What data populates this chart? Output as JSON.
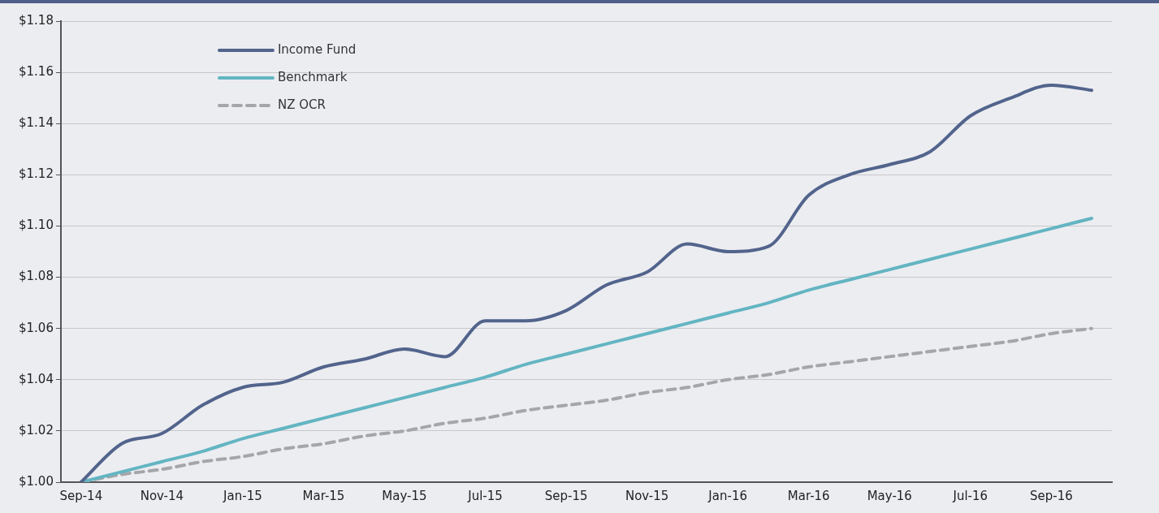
{
  "chart_data": {
    "type": "line",
    "categories": [
      "Sep-14",
      null,
      "Nov-14",
      null,
      "Jan-15",
      null,
      "Mar-15",
      null,
      "May-15",
      null,
      "Jul-15",
      null,
      "Sep-15",
      null,
      "Nov-15",
      null,
      "Jan-16",
      null,
      "Mar-16",
      null,
      "May-16",
      null,
      "Jul-16",
      null,
      "Sep-16",
      null
    ],
    "series": [
      {
        "name": "Income Fund",
        "color": "#52648c",
        "line_style": "solid",
        "values": [
          1.0,
          1.015,
          1.019,
          1.03,
          1.037,
          1.039,
          1.045,
          1.048,
          1.052,
          1.049,
          1.063,
          1.063,
          1.067,
          1.077,
          1.082,
          1.093,
          1.09,
          1.092,
          1.112,
          1.12,
          1.124,
          1.129,
          1.143,
          1.15,
          1.155,
          1.153
        ]
      },
      {
        "name": "Benchmark",
        "color": "#63b5c2",
        "line_style": "solid",
        "values": [
          1.0,
          1.004,
          1.008,
          1.012,
          1.017,
          1.021,
          1.025,
          1.029,
          1.033,
          1.037,
          1.041,
          1.046,
          1.05,
          1.054,
          1.058,
          1.062,
          1.066,
          1.07,
          1.075,
          1.079,
          1.083,
          1.087,
          1.091,
          1.095,
          1.099,
          1.103
        ]
      },
      {
        "name": "NZ OCR",
        "color": "#a6a6aa",
        "line_style": "dashed",
        "values": [
          1.0,
          1.003,
          1.005,
          1.008,
          1.01,
          1.013,
          1.015,
          1.018,
          1.02,
          1.023,
          1.025,
          1.028,
          1.03,
          1.032,
          1.035,
          1.037,
          1.04,
          1.042,
          1.045,
          1.047,
          1.049,
          1.051,
          1.053,
          1.055,
          1.058,
          1.06
        ]
      }
    ],
    "ylim": [
      1.0,
      1.18
    ],
    "yticks": [
      {
        "value": 1.0,
        "label": "$1.00"
      },
      {
        "value": 1.02,
        "label": "$1.02"
      },
      {
        "value": 1.04,
        "label": "$1.04"
      },
      {
        "value": 1.06,
        "label": "$1.06"
      },
      {
        "value": 1.08,
        "label": "$1.08"
      },
      {
        "value": 1.1,
        "label": "$1.10"
      },
      {
        "value": 1.12,
        "label": "$1.12"
      },
      {
        "value": 1.14,
        "label": "$1.14"
      },
      {
        "value": 1.16,
        "label": "$1.16"
      },
      {
        "value": 1.18,
        "label": "$1.18"
      }
    ],
    "grid": "y",
    "legend": "top left",
    "marker": "none"
  }
}
